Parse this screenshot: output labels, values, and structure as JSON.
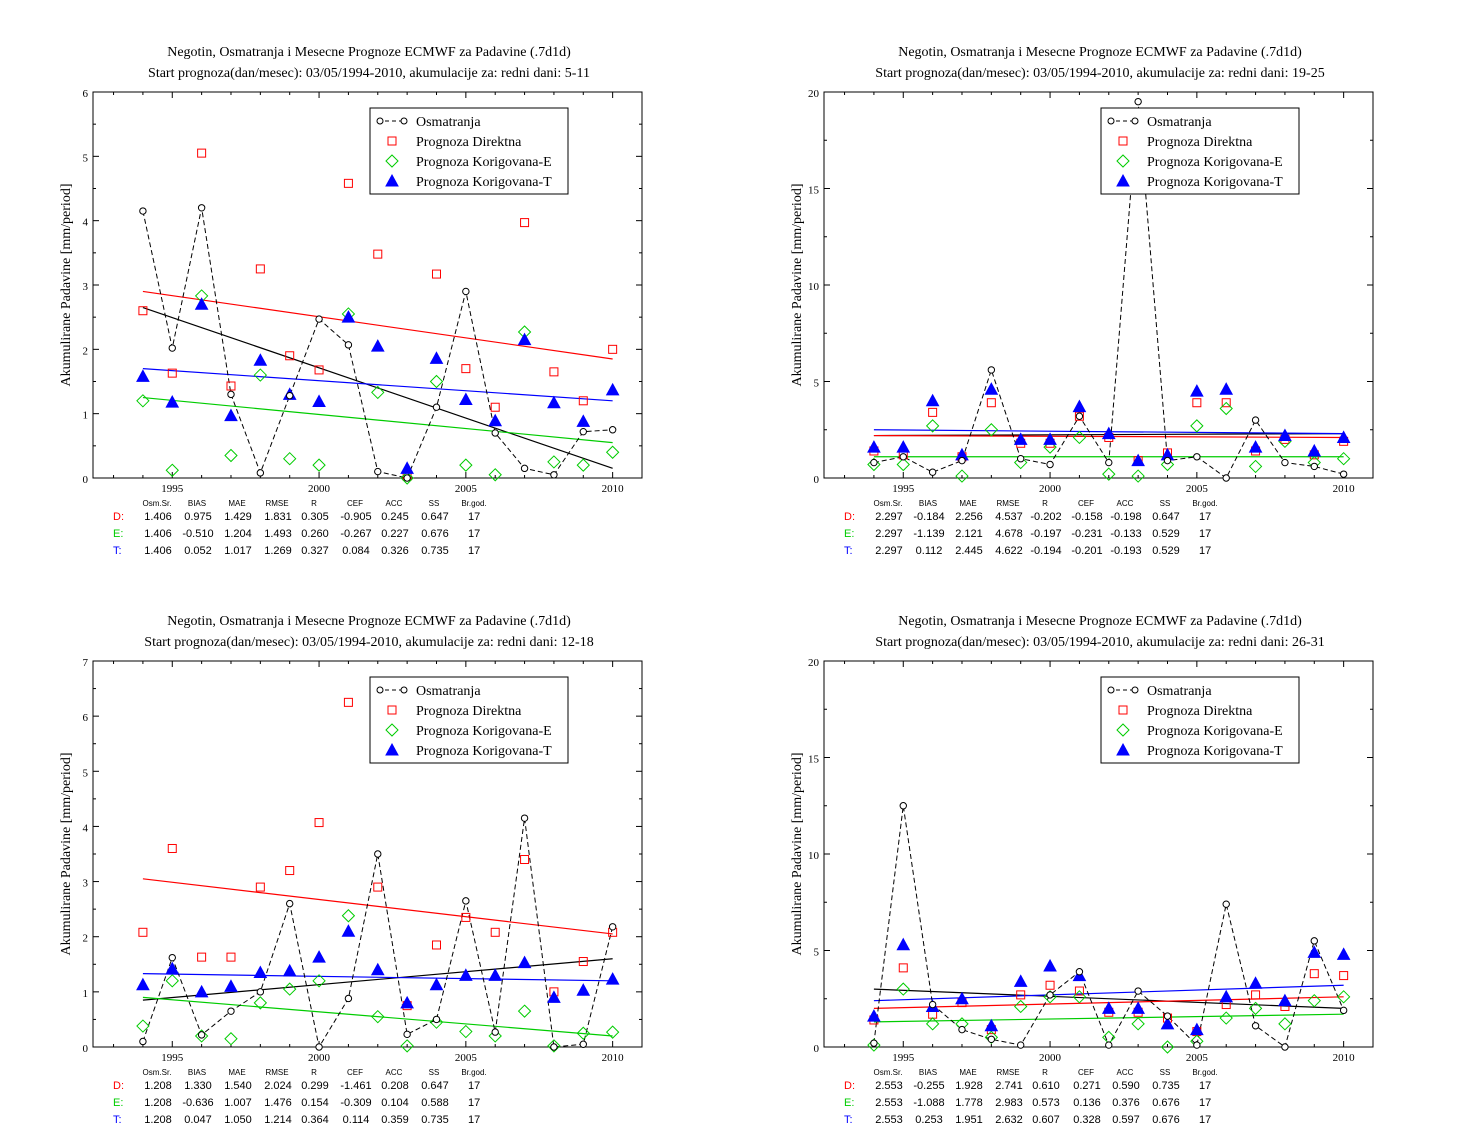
{
  "stat_headers": [
    "Osm.Sr.",
    "BIAS",
    "MAE",
    "RMSE",
    "R",
    "CEF",
    "ACC",
    "SS",
    "Br.god."
  ],
  "legend": [
    "Osmatranja",
    "Prognoza Direktna",
    "Prognoza Korigovana-E",
    "Prognoza Korigovana-T"
  ],
  "colors": {
    "obs": "#000000",
    "direct": "#ff0000",
    "corrE": "#00cc00",
    "corrT": "#0000ff"
  },
  "chart_data": [
    {
      "type": "scatter",
      "title": "Negotin, Osmatranja i Mesecne Prognoze ECMWF za Padavine (.7d1d)",
      "subtitle": "Start prognoza(dan/mesec): 03/05/1994-2010, akumulacije za: redni dani: 5-11",
      "ylabel": "Akumulirane Padavine [mm/period]",
      "xlim": [
        1992.3,
        2011
      ],
      "ylim": [
        0,
        6
      ],
      "yticks": [
        0,
        1,
        2,
        3,
        4,
        5,
        6
      ],
      "xticks": [
        1995,
        2000,
        2005,
        2010
      ],
      "x": [
        1994,
        1995,
        1996,
        1997,
        1998,
        1999,
        2000,
        2001,
        2002,
        2003,
        2004,
        2005,
        2006,
        2007,
        2008,
        2009,
        2010
      ],
      "series": [
        {
          "name": "Osmatranja",
          "values": [
            4.15,
            2.02,
            4.2,
            1.3,
            0.08,
            1.28,
            2.47,
            2.07,
            0.1,
            0,
            1.1,
            2.9,
            0.7,
            0.15,
            0.05,
            0.72,
            0.75
          ]
        },
        {
          "name": "Prognoza Direktna",
          "values": [
            2.6,
            1.63,
            5.05,
            1.43,
            3.25,
            1.9,
            1.68,
            4.58,
            3.48,
            0.03,
            3.17,
            1.7,
            1.1,
            3.97,
            1.65,
            1.2,
            2.0
          ]
        },
        {
          "name": "Prognoza Korigovana-E",
          "values": [
            1.2,
            0.12,
            2.83,
            0.35,
            1.6,
            0.3,
            0.2,
            2.55,
            1.33,
            0,
            1.5,
            0.2,
            0.05,
            2.27,
            0.25,
            0.2,
            0.4
          ]
        },
        {
          "name": "Prognoza Korigovana-T",
          "values": [
            1.58,
            1.18,
            2.7,
            0.97,
            1.83,
            1.3,
            1.19,
            2.5,
            2.05,
            0.15,
            1.86,
            1.22,
            0.89,
            2.15,
            1.17,
            0.88,
            1.37
          ]
        }
      ],
      "trends": {
        "obs": [
          2.65,
          0.15
        ],
        "direct": [
          2.9,
          1.85
        ],
        "corrE": [
          1.25,
          0.55
        ],
        "corrT": [
          1.7,
          1.2
        ]
      },
      "stats": [
        [
          "D:",
          "1.406",
          "0.975",
          "1.429",
          "1.831",
          "0.305",
          "-0.905",
          "0.245",
          "0.647",
          "17"
        ],
        [
          "E:",
          "1.406",
          "-0.510",
          "1.204",
          "1.493",
          "0.260",
          "-0.267",
          "0.227",
          "0.676",
          "17"
        ],
        [
          "T:",
          "1.406",
          "0.052",
          "1.017",
          "1.269",
          "0.327",
          "0.084",
          "0.326",
          "0.735",
          "17"
        ]
      ]
    },
    {
      "type": "scatter",
      "title": "Negotin, Osmatranja i Mesecne Prognoze ECMWF za Padavine (.7d1d)",
      "subtitle": "Start prognoza(dan/mesec): 03/05/1994-2010, akumulacije za: redni dani: 19-25",
      "ylabel": "Akumulirane Padavine [mm/period]",
      "xlim": [
        1992.3,
        2011
      ],
      "ylim": [
        0,
        20
      ],
      "yticks": [
        0,
        5,
        10,
        15,
        20
      ],
      "xticks": [
        1995,
        2000,
        2005,
        2010
      ],
      "x": [
        1994,
        1995,
        1996,
        1997,
        1998,
        1999,
        2000,
        2001,
        2002,
        2003,
        2004,
        2005,
        2006,
        2007,
        2008,
        2009,
        2010
      ],
      "series": [
        {
          "name": "Osmatranja",
          "values": [
            0.8,
            1.1,
            0.3,
            0.9,
            5.6,
            1.0,
            0.7,
            3.2,
            0.8,
            19.5,
            0.9,
            1.1,
            0,
            3.0,
            0.8,
            0.6,
            0.2
          ]
        },
        {
          "name": "Prognoza Direktna",
          "values": [
            1.4,
            1.2,
            3.4,
            1.1,
            3.9,
            1.8,
            1.8,
            3.2,
            2.1,
            0.9,
            1.3,
            3.9,
            3.9,
            1.4,
            2.0,
            1.2,
            1.9
          ]
        },
        {
          "name": "Prognoza Korigovana-E",
          "values": [
            0.7,
            0.7,
            2.7,
            0.1,
            2.5,
            0.8,
            1.6,
            2.1,
            0.2,
            0.1,
            0.7,
            2.7,
            3.6,
            0.6,
            1.9,
            0.8,
            1.0
          ]
        },
        {
          "name": "Prognoza Korigovana-T",
          "values": [
            1.6,
            1.6,
            4.0,
            1.2,
            4.6,
            2.0,
            2.0,
            3.7,
            2.3,
            0.9,
            1.2,
            4.5,
            4.6,
            1.6,
            2.2,
            1.4,
            2.1
          ]
        }
      ],
      "trends": {
        "obs": [
          2.2,
          2.3
        ],
        "direct": [
          2.2,
          2.1
        ],
        "corrE": [
          1.1,
          1.1
        ],
        "corrT": [
          2.5,
          2.3
        ]
      },
      "stats": [
        [
          "D:",
          "2.297",
          "-0.184",
          "2.256",
          "4.537",
          "-0.202",
          "-0.158",
          "-0.198",
          "0.647",
          "17"
        ],
        [
          "E:",
          "2.297",
          "-1.139",
          "2.121",
          "4.678",
          "-0.197",
          "-0.231",
          "-0.133",
          "0.529",
          "17"
        ],
        [
          "T:",
          "2.297",
          "0.112",
          "2.445",
          "4.622",
          "-0.194",
          "-0.201",
          "-0.193",
          "0.529",
          "17"
        ]
      ]
    },
    {
      "type": "scatter",
      "title": "Negotin, Osmatranja i Mesecne Prognoze ECMWF za Padavine (.7d1d)",
      "subtitle": "Start prognoza(dan/mesec): 03/05/1994-2010, akumulacije za: redni dani: 12-18",
      "ylabel": "Akumulirane Padavine [mm/period]",
      "xlim": [
        1992.3,
        2011
      ],
      "ylim": [
        0,
        7
      ],
      "yticks": [
        0,
        1,
        2,
        3,
        4,
        5,
        6,
        7
      ],
      "xticks": [
        1995,
        2000,
        2005,
        2010
      ],
      "x": [
        1994,
        1995,
        1996,
        1997,
        1998,
        1999,
        2000,
        2001,
        2002,
        2003,
        2004,
        2005,
        2006,
        2007,
        2008,
        2009,
        2010
      ],
      "series": [
        {
          "name": "Osmatranja",
          "values": [
            0.1,
            1.62,
            0.22,
            0.65,
            1.0,
            2.6,
            0,
            0.88,
            3.5,
            0.23,
            0.5,
            2.65,
            0.27,
            4.15,
            0,
            0.05,
            2.18
          ]
        },
        {
          "name": "Prognoza Direktna",
          "values": [
            2.08,
            3.6,
            1.63,
            1.63,
            2.9,
            3.2,
            4.07,
            6.25,
            2.9,
            0.75,
            1.85,
            2.35,
            2.08,
            3.4,
            1.0,
            1.55,
            2.08
          ]
        },
        {
          "name": "Prognoza Korigovana-E",
          "values": [
            0.38,
            1.2,
            0.2,
            0.15,
            0.8,
            1.05,
            1.2,
            2.38,
            0.55,
            0.02,
            0.45,
            0.28,
            0.2,
            0.65,
            0.02,
            0.25,
            0.27
          ]
        },
        {
          "name": "Prognoza Korigovana-T",
          "values": [
            1.13,
            1.42,
            1.0,
            1.1,
            1.35,
            1.38,
            1.63,
            2.1,
            1.4,
            0.8,
            1.13,
            1.3,
            1.3,
            1.53,
            0.9,
            1.03,
            1.23
          ]
        }
      ],
      "trends": {
        "obs": [
          0.85,
          1.6
        ],
        "direct": [
          3.05,
          2.05
        ],
        "corrE": [
          0.9,
          0.2
        ],
        "corrT": [
          1.33,
          1.2
        ]
      },
      "stats": [
        [
          "D:",
          "1.208",
          "1.330",
          "1.540",
          "2.024",
          "0.299",
          "-1.461",
          "0.208",
          "0.647",
          "17"
        ],
        [
          "E:",
          "1.208",
          "-0.636",
          "1.007",
          "1.476",
          "0.154",
          "-0.309",
          "0.104",
          "0.588",
          "17"
        ],
        [
          "T:",
          "1.208",
          "0.047",
          "1.050",
          "1.214",
          "0.364",
          "0.114",
          "0.359",
          "0.735",
          "17"
        ]
      ]
    },
    {
      "type": "scatter",
      "title": "Negotin, Osmatranja i Mesecne Prognoze ECMWF za Padavine (.7d1d)",
      "subtitle": "Start prognoza(dan/mesec): 03/05/1994-2010, akumulacije za: redni dani: 26-31",
      "ylabel": "Akumulirane Padavine [mm/period]",
      "xlim": [
        1992.3,
        2011
      ],
      "ylim": [
        0,
        20
      ],
      "yticks": [
        0,
        5,
        10,
        15,
        20
      ],
      "xticks": [
        1995,
        2000,
        2005,
        2010
      ],
      "x": [
        1994,
        1995,
        1996,
        1997,
        1998,
        1999,
        2000,
        2001,
        2002,
        2003,
        2004,
        2005,
        2006,
        2007,
        2008,
        2009,
        2010
      ],
      "series": [
        {
          "name": "Osmatranja",
          "values": [
            0.2,
            12.5,
            2.2,
            0.9,
            0.4,
            0.1,
            2.7,
            3.9,
            0.1,
            2.9,
            1.6,
            0.1,
            7.4,
            1.1,
            0,
            5.5,
            1.9
          ]
        },
        {
          "name": "Prognoza Direktna",
          "values": [
            1.4,
            4.1,
            1.7,
            2.3,
            0.9,
            2.7,
            3.2,
            2.9,
            1.8,
            1.8,
            1.5,
            0.8,
            2.2,
            2.7,
            2.1,
            3.8,
            3.7
          ]
        },
        {
          "name": "Prognoza Korigovana-E",
          "values": [
            0.1,
            3.0,
            1.2,
            1.2,
            0.5,
            2.1,
            2.6,
            2.6,
            0.5,
            1.2,
            0,
            0.3,
            1.5,
            2.0,
            1.2,
            2.4,
            2.6
          ]
        },
        {
          "name": "Prognoza Korigovana-T",
          "values": [
            1.6,
            5.3,
            2.1,
            2.5,
            1.1,
            3.4,
            4.2,
            3.7,
            2.0,
            2.0,
            1.2,
            0.9,
            2.6,
            3.3,
            2.4,
            4.9,
            4.8
          ]
        }
      ],
      "trends": {
        "obs": [
          3.0,
          2.0
        ],
        "direct": [
          2.0,
          2.6
        ],
        "corrE": [
          1.3,
          1.7
        ],
        "corrT": [
          2.4,
          3.2
        ]
      },
      "stats": [
        [
          "D:",
          "2.553",
          "-0.255",
          "1.928",
          "2.741",
          "0.610",
          "0.271",
          "0.590",
          "0.735",
          "17"
        ],
        [
          "E:",
          "2.553",
          "-1.088",
          "1.778",
          "2.983",
          "0.573",
          "0.136",
          "0.376",
          "0.676",
          "17"
        ],
        [
          "T:",
          "2.553",
          "0.253",
          "1.951",
          "2.632",
          "0.607",
          "0.328",
          "0.597",
          "0.676",
          "17"
        ]
      ]
    }
  ]
}
